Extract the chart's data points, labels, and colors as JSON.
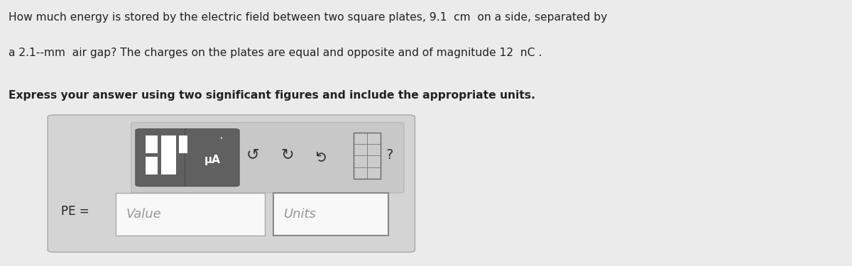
{
  "page_bg": "#ebebeb",
  "title_line1": "How much energy is stored by the electric field between two square plates, 9.1  cm  on a side, separated by",
  "title_line2": "a 2.1-­mm  air gap? The charges on the plates are equal and opposite and of magnitude 12  nC .",
  "subtitle": "Express your answer using two significant figures and include the appropriate units.",
  "label_pe": "PE =",
  "placeholder_value": "Value",
  "placeholder_units": "Units",
  "panel_bg": "#d4d4d4",
  "panel_edge": "#b0b0b0",
  "toolbar_bg": "#c8c8c8",
  "toolbar_edge": "#b8b8b8",
  "dark_btn_bg": "#606060",
  "dark_btn_edge": "#404040",
  "input_bg": "#f8f8f8",
  "input_edge": "#aaaaaa",
  "icon_color": "#333333",
  "text_color": "#222222"
}
